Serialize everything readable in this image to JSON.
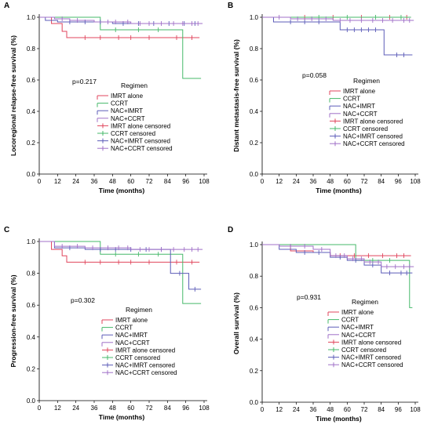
{
  "chart_data": [
    {
      "type": "line",
      "panel": "A",
      "xlabel": "Time (months)",
      "ylabel": "Locoregional relapse-free survival (%)",
      "xlim": [
        0,
        108
      ],
      "ylim": [
        0,
        1.0
      ],
      "xticks": [
        "0",
        "12",
        "24",
        "36",
        "48",
        "60",
        "72",
        "84",
        "96",
        "108"
      ],
      "yticks": [
        "0.0",
        "0.2",
        "0.4",
        "0.6",
        "0.8",
        "1.0"
      ],
      "pvalue": "p=0.217",
      "legend_title": "Regimen",
      "legend": [
        "IMRT alone",
        "CCRT",
        "NAC+IMRT",
        "NAC+CCRT",
        "IMRT alone censored",
        "CCRT censored",
        "NAC+IMRT censored",
        "NAC+CCRT censored"
      ],
      "series": [
        {
          "name": "IMRT alone",
          "color": "#e0455c",
          "x": [
            0,
            8,
            15,
            18,
            105
          ],
          "y": [
            1.0,
            0.96,
            0.91,
            0.87,
            0.87
          ],
          "censored": [
            30,
            40,
            52,
            60,
            72,
            90,
            100
          ]
        },
        {
          "name": "CCRT",
          "color": "#46b96a",
          "x": [
            0,
            40,
            88,
            94,
            106
          ],
          "y": [
            1.0,
            0.92,
            0.92,
            0.61,
            0.61
          ],
          "censored": [
            50,
            65,
            78
          ]
        },
        {
          "name": "NAC+IMRT",
          "color": "#5c5cb8",
          "x": [
            0,
            4,
            12,
            48,
            106
          ],
          "y": [
            1.0,
            0.98,
            0.97,
            0.96,
            0.96
          ],
          "censored": [
            20,
            30,
            40,
            55,
            65,
            75,
            85,
            95,
            102
          ]
        },
        {
          "name": "NAC+CCRT",
          "color": "#a070c8",
          "x": [
            0,
            10,
            20,
            36,
            60,
            107
          ],
          "y": [
            1.0,
            0.99,
            0.98,
            0.97,
            0.96,
            0.96
          ],
          "censored": [
            15,
            25,
            45,
            50,
            58,
            66,
            72,
            80,
            88,
            94,
            100,
            104
          ]
        }
      ]
    },
    {
      "type": "line",
      "panel": "B",
      "xlabel": "Time (months)",
      "ylabel": "Distant metastasis-free survival (%)",
      "xlim": [
        0,
        108
      ],
      "ylim": [
        0,
        1.0
      ],
      "xticks": [
        "0",
        "12",
        "24",
        "36",
        "48",
        "60",
        "72",
        "84",
        "96",
        "108"
      ],
      "yticks": [
        "0.0",
        "0.2",
        "0.4",
        "0.6",
        "0.8",
        "1.0"
      ],
      "pvalue": "p=0.058",
      "legend_title": "Regimen",
      "legend": [
        "IMRT alone",
        "CCRT",
        "NAC+IMRT",
        "NAC+CCRT",
        "IMRT alone censored",
        "CCRT censored",
        "NAC+IMRT censored",
        "NAC+CCRT censored"
      ],
      "series": [
        {
          "name": "IMRT alone",
          "color": "#e0455c",
          "x": [
            0,
            105
          ],
          "y": [
            1.0,
            1.0
          ],
          "censored": [
            30,
            50,
            70,
            90,
            102
          ]
        },
        {
          "name": "CCRT",
          "color": "#46b96a",
          "x": [
            0,
            105
          ],
          "y": [
            1.0,
            1.0
          ],
          "censored": [
            40,
            60,
            80,
            98
          ]
        },
        {
          "name": "NAC+IMRT",
          "color": "#5c5cb8",
          "x": [
            0,
            8,
            55,
            86,
            106
          ],
          "y": [
            1.0,
            0.97,
            0.92,
            0.76,
            0.76
          ],
          "censored": [
            20,
            30,
            40,
            60,
            65,
            70,
            75,
            80,
            95,
            100
          ]
        },
        {
          "name": "NAC+CCRT",
          "color": "#a070c8",
          "x": [
            0,
            20,
            50,
            107
          ],
          "y": [
            1.0,
            0.99,
            0.98,
            0.98
          ],
          "censored": [
            12,
            25,
            35,
            45,
            55,
            62,
            70,
            78,
            85,
            92,
            100,
            104
          ]
        }
      ]
    },
    {
      "type": "line",
      "panel": "C",
      "xlabel": "Time (months)",
      "ylabel": "Progression-free survival (%)",
      "xlim": [
        0,
        108
      ],
      "ylim": [
        0,
        1.0
      ],
      "xticks": [
        "0",
        "12",
        "24",
        "36",
        "48",
        "60",
        "72",
        "84",
        "96",
        "108"
      ],
      "yticks": [
        "0.0",
        "0.2",
        "0.4",
        "0.6",
        "0.8",
        "1.0"
      ],
      "pvalue": "p=0.302",
      "legend_title": "Regimen",
      "legend": [
        "IMRT alone",
        "CCRT",
        "NAC+IMRT",
        "NAC+CCRT",
        "IMRT alone censored",
        "CCRT censored",
        "NAC+IMRT censored",
        "NAC+CCRT censored"
      ],
      "series": [
        {
          "name": "IMRT alone",
          "color": "#e0455c",
          "x": [
            0,
            8,
            15,
            18,
            105
          ],
          "y": [
            1.0,
            0.95,
            0.91,
            0.87,
            0.87
          ],
          "censored": [
            30,
            40,
            52,
            60,
            72,
            90,
            100
          ]
        },
        {
          "name": "CCRT",
          "color": "#46b96a",
          "x": [
            0,
            40,
            88,
            94,
            106
          ],
          "y": [
            1.0,
            0.92,
            0.92,
            0.61,
            0.61
          ],
          "censored": [
            50,
            65,
            78
          ]
        },
        {
          "name": "NAC+IMRT",
          "color": "#5c5cb8",
          "x": [
            0,
            10,
            30,
            86,
            98,
            106
          ],
          "y": [
            1.0,
            0.96,
            0.95,
            0.8,
            0.7,
            0.7
          ],
          "censored": [
            20,
            40,
            50,
            60,
            70,
            80,
            92,
            102
          ]
        },
        {
          "name": "NAC+CCRT",
          "color": "#a070c8",
          "x": [
            0,
            10,
            30,
            60,
            107
          ],
          "y": [
            1.0,
            0.97,
            0.96,
            0.95,
            0.95
          ],
          "censored": [
            15,
            25,
            35,
            45,
            52,
            58,
            66,
            72,
            80,
            88,
            95,
            100,
            104
          ]
        }
      ]
    },
    {
      "type": "line",
      "panel": "D",
      "xlabel": "Time (months)",
      "ylabel": "Overall survival (%)",
      "xlim": [
        0,
        108
      ],
      "ylim": [
        0,
        1.0
      ],
      "xticks": [
        "0",
        "12",
        "24",
        "36",
        "48",
        "60",
        "72",
        "84",
        "96",
        "108"
      ],
      "yticks": [
        "0.0",
        "0.2",
        "0.4",
        "0.6",
        "0.8",
        "1.0"
      ],
      "pvalue": "p=0.931",
      "legend_title": "Regimen",
      "legend": [
        "IMRT alone",
        "CCRT",
        "NAC+IMRT",
        "NAC+CCRT",
        "IMRT alone censored",
        "CCRT censored",
        "NAC+IMRT censored",
        "NAC+CCRT censored"
      ],
      "series": [
        {
          "name": "IMRT alone",
          "color": "#e0455c",
          "x": [
            0,
            20,
            36,
            48,
            105
          ],
          "y": [
            1.0,
            0.96,
            0.95,
            0.93,
            0.93
          ],
          "censored": [
            55,
            65,
            75,
            85,
            95,
            100
          ]
        },
        {
          "name": "CCRT",
          "color": "#46b96a",
          "x": [
            0,
            66,
            102,
            104,
            106
          ],
          "y": [
            1.0,
            0.9,
            0.9,
            0.6,
            0.6
          ],
          "censored": [
            78,
            90
          ]
        },
        {
          "name": "NAC+IMRT",
          "color": "#5c5cb8",
          "x": [
            0,
            12,
            24,
            48,
            60,
            72,
            84,
            106
          ],
          "y": [
            1.0,
            0.97,
            0.95,
            0.92,
            0.9,
            0.87,
            0.82,
            0.82
          ],
          "censored": [
            30,
            40,
            55,
            66,
            78,
            90,
            98,
            102
          ]
        },
        {
          "name": "NAC+CCRT",
          "color": "#a070c8",
          "x": [
            0,
            12,
            36,
            48,
            60,
            72,
            84,
            107
          ],
          "y": [
            1.0,
            0.99,
            0.97,
            0.93,
            0.91,
            0.89,
            0.86,
            0.86
          ],
          "censored": [
            20,
            30,
            42,
            52,
            58,
            64,
            70,
            76,
            82,
            88,
            94,
            100,
            104
          ]
        }
      ]
    }
  ]
}
